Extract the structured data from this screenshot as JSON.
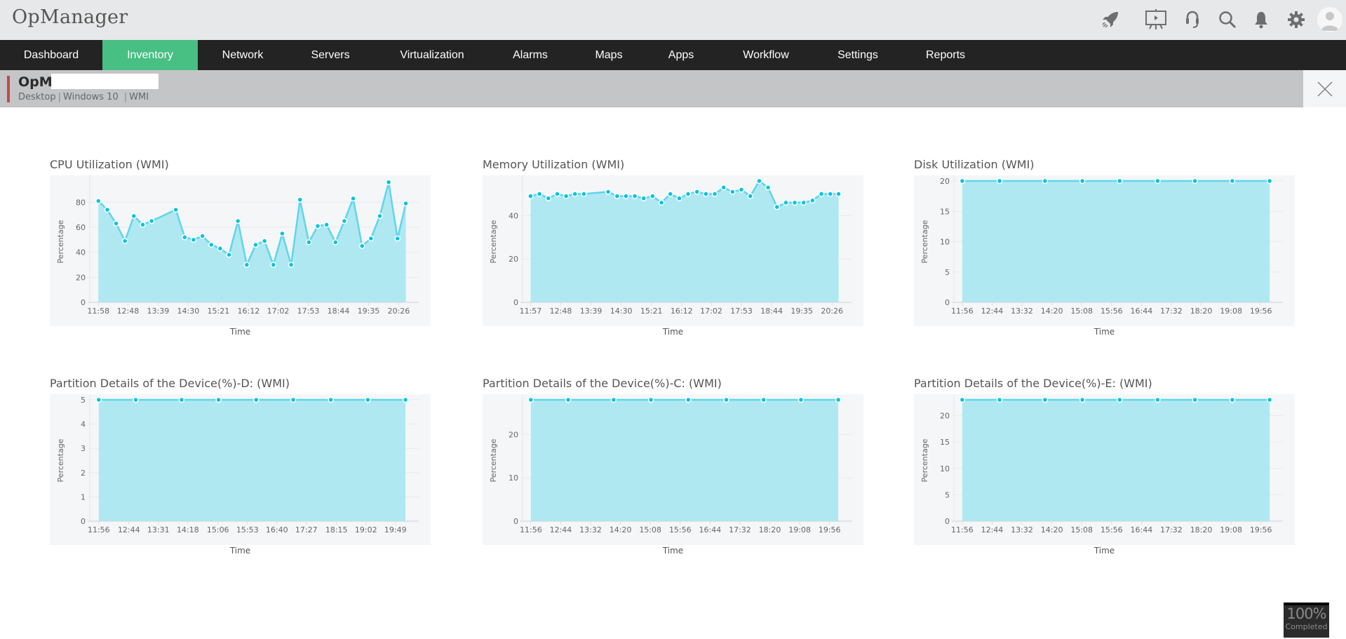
{
  "app": {
    "title": "OpManager"
  },
  "header_icons": [
    "rocket-icon",
    "presentation-icon",
    "headset-icon",
    "search-icon",
    "bell-icon",
    "gear-icon",
    "user-avatar-icon"
  ],
  "nav": {
    "items": [
      {
        "label": "Dashboard"
      },
      {
        "label": "Inventory",
        "active": true
      },
      {
        "label": "Network"
      },
      {
        "label": "Servers"
      },
      {
        "label": "Virtualization"
      },
      {
        "label": "Alarms"
      },
      {
        "label": "Maps"
      },
      {
        "label": "Apps"
      },
      {
        "label": "Workflow"
      },
      {
        "label": "Settings"
      },
      {
        "label": "Reports"
      }
    ],
    "active_color": "#48bf83"
  },
  "device": {
    "name": "OpM-",
    "type": "Desktop",
    "os": "Windows 10",
    "protocol": "WMI"
  },
  "colors": {
    "area": "#ace7f1",
    "line": "#5fd6ea",
    "marker": "#00c4e0"
  },
  "progress": {
    "value": "100%",
    "label": "Completed"
  },
  "chart_data": [
    {
      "type": "area",
      "title": "CPU Utilization (WMI)",
      "xlabel": "Time",
      "ylabel": "Percentage",
      "ylim": [
        0,
        97
      ],
      "xlim": [
        "11:47",
        "20:48"
      ],
      "yticks": [
        0,
        20,
        40,
        60,
        80
      ],
      "grid": true,
      "x_ticks": [
        "11:58",
        "12:48",
        "13:39",
        "14:30",
        "15:21",
        "16:12",
        "17:02",
        "17:53",
        "18:44",
        "19:35",
        "20:26"
      ],
      "x": [
        "11:58",
        "12:13",
        "12:28",
        "12:43",
        "12:58",
        "13:13",
        "13:28",
        "14:09",
        "14:24",
        "14:39",
        "14:54",
        "15:09",
        "15:24",
        "15:39",
        "15:54",
        "16:09",
        "16:24",
        "16:39",
        "16:54",
        "17:09",
        "17:24",
        "17:39",
        "17:54",
        "18:09",
        "18:24",
        "18:39",
        "18:54",
        "19:09",
        "19:24",
        "19:39",
        "19:54",
        "20:09",
        "20:24",
        "20:38"
      ],
      "values": [
        81,
        74,
        63,
        49,
        69,
        62,
        65,
        74,
        52,
        50,
        53,
        46,
        43,
        38,
        65,
        30,
        46,
        49,
        30,
        55,
        30,
        82,
        48,
        61,
        62,
        48,
        65,
        83,
        45,
        51,
        69,
        96,
        51,
        79
      ]
    },
    {
      "type": "area",
      "title": "Memory Utilization (WMI)",
      "xlabel": "Time",
      "ylabel": "Percentage",
      "ylim": [
        0,
        56
      ],
      "xlim": [
        "11:47",
        "20:47"
      ],
      "yticks": [
        0,
        20,
        40
      ],
      "grid": true,
      "x_ticks": [
        "11:57",
        "12:48",
        "13:39",
        "14:30",
        "15:21",
        "16:12",
        "17:02",
        "17:53",
        "18:44",
        "19:35",
        "20:26"
      ],
      "x": [
        "11:57",
        "12:12",
        "12:27",
        "12:42",
        "12:57",
        "13:12",
        "13:27",
        "14:08",
        "14:23",
        "14:38",
        "14:53",
        "15:08",
        "15:23",
        "15:38",
        "15:53",
        "16:08",
        "16:23",
        "16:38",
        "16:53",
        "17:08",
        "17:23",
        "17:38",
        "17:53",
        "18:08",
        "18:23",
        "18:38",
        "18:53",
        "19:08",
        "19:23",
        "19:38",
        "19:53",
        "20:08",
        "20:23",
        "20:37"
      ],
      "values": [
        49,
        50,
        48,
        50,
        49,
        50,
        50,
        51,
        49,
        49,
        49,
        48,
        49,
        46,
        50,
        48,
        50,
        51,
        50,
        50,
        53,
        51,
        52,
        49,
        56,
        53,
        44,
        46,
        46,
        46,
        47,
        50,
        50,
        50
      ]
    },
    {
      "type": "area",
      "title": "Disk Utilization (WMI)",
      "xlabel": "Time",
      "ylabel": "Percentage",
      "ylim": [
        0,
        20
      ],
      "xlim": [
        "11:46",
        "20:20"
      ],
      "yticks": [
        0,
        5,
        10,
        15,
        20
      ],
      "grid": true,
      "x_ticks": [
        "11:56",
        "12:44",
        "13:32",
        "14:20",
        "15:08",
        "15:56",
        "16:44",
        "17:32",
        "18:20",
        "19:08",
        "19:56"
      ],
      "x": [
        "11:56",
        "12:56",
        "14:09",
        "15:09",
        "16:09",
        "17:10",
        "18:10",
        "19:10",
        "20:10"
      ],
      "values": [
        20,
        20,
        20,
        20,
        20,
        20,
        20,
        20,
        20
      ]
    },
    {
      "type": "area",
      "title": "Partition Details of the Device(%)-D: (WMI)",
      "xlabel": "Time",
      "ylabel": "Percentage",
      "ylim": [
        0,
        5
      ],
      "xlim": [
        "11:45",
        "20:15"
      ],
      "yticks": [
        0,
        1,
        2,
        3,
        4,
        5
      ],
      "grid": true,
      "x_ticks": [
        "11:56",
        "12:44",
        "13:31",
        "14:18",
        "15:06",
        "15:53",
        "16:40",
        "17:27",
        "18:15",
        "19:02",
        "19:49"
      ],
      "x": [
        "11:56",
        "12:55",
        "14:08",
        "15:07",
        "16:07",
        "17:06",
        "18:06",
        "19:05",
        "20:05"
      ],
      "values": [
        5,
        5,
        5,
        5,
        5,
        5,
        5,
        5,
        5
      ]
    },
    {
      "type": "area",
      "title": "Partition Details of the Device(%)-C: (WMI)",
      "xlabel": "Time",
      "ylabel": "Percentage",
      "ylim": [
        0,
        28
      ],
      "xlim": [
        "11:46",
        "20:20"
      ],
      "yticks": [
        0,
        10,
        20
      ],
      "grid": true,
      "x_ticks": [
        "11:56",
        "12:44",
        "13:32",
        "14:20",
        "15:08",
        "15:56",
        "16:44",
        "17:32",
        "18:20",
        "19:08",
        "19:56"
      ],
      "x": [
        "11:56",
        "12:56",
        "14:09",
        "15:09",
        "16:09",
        "17:10",
        "18:10",
        "19:10",
        "20:10"
      ],
      "values": [
        28,
        28,
        28,
        28,
        28,
        28,
        28,
        28,
        28
      ]
    },
    {
      "type": "area",
      "title": "Partition Details of the Device(%)-E: (WMI)",
      "xlabel": "Time",
      "ylabel": "Percentage",
      "ylim": [
        0,
        23
      ],
      "xlim": [
        "11:46",
        "20:20"
      ],
      "yticks": [
        0,
        5,
        10,
        15,
        20
      ],
      "grid": true,
      "x_ticks": [
        "11:56",
        "12:44",
        "13:32",
        "14:20",
        "15:08",
        "15:56",
        "16:44",
        "17:32",
        "18:20",
        "19:08",
        "19:56"
      ],
      "x": [
        "11:56",
        "12:56",
        "14:09",
        "15:09",
        "16:09",
        "17:10",
        "18:10",
        "19:10",
        "20:10"
      ],
      "values": [
        23,
        23,
        23,
        23,
        23,
        23,
        23,
        23,
        23
      ]
    }
  ]
}
